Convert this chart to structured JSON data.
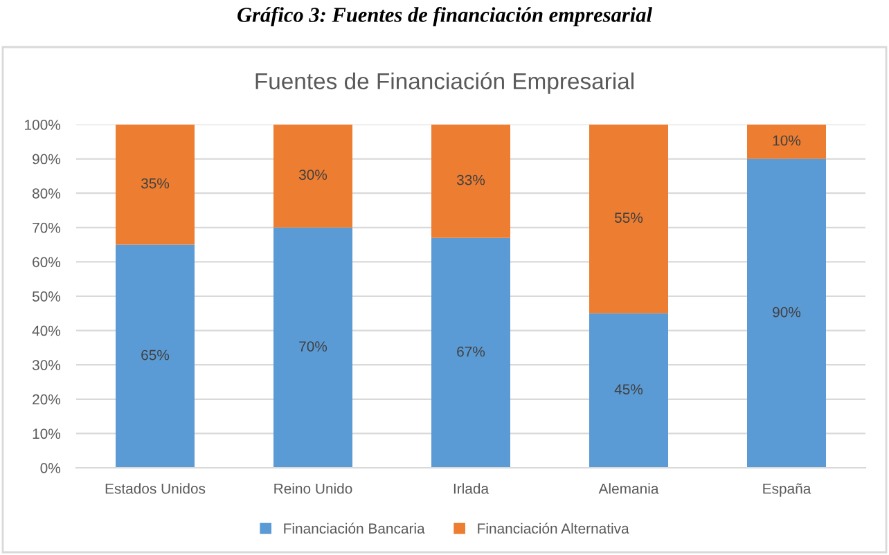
{
  "chart_data": {
    "type": "bar",
    "stacked": true,
    "title": "Gráfico 3: Fuentes de financiación empresarial",
    "subtitle": "Fuentes de Financiación Empresarial",
    "categories": [
      "Estados Unidos",
      "Reino Unido",
      "Irlada",
      "Alemania",
      "España"
    ],
    "series": [
      {
        "name": "Financiación Bancaria",
        "color": "#5b9bd5",
        "values": [
          65,
          70,
          67,
          45,
          90
        ],
        "value_labels": [
          "65%",
          "70%",
          "67%",
          "45%",
          "90%"
        ]
      },
      {
        "name": "Financiación Alternativa",
        "color": "#ed7d31",
        "values": [
          35,
          30,
          33,
          55,
          10
        ],
        "value_labels": [
          "35%",
          "30%",
          "33%",
          "55%",
          "10%"
        ]
      }
    ],
    "ylim": [
      0,
      100
    ],
    "yticks": [
      {
        "value": 0,
        "label": "0%"
      },
      {
        "value": 10,
        "label": "10%"
      },
      {
        "value": 20,
        "label": "20%"
      },
      {
        "value": 30,
        "label": "30%"
      },
      {
        "value": 40,
        "label": "40%"
      },
      {
        "value": 50,
        "label": "50%"
      },
      {
        "value": 60,
        "label": "60%"
      },
      {
        "value": 70,
        "label": "70%"
      },
      {
        "value": 80,
        "label": "80%"
      },
      {
        "value": 90,
        "label": "90%"
      },
      {
        "value": 100,
        "label": "100%"
      }
    ],
    "grid": "y",
    "legend": "bottom"
  }
}
